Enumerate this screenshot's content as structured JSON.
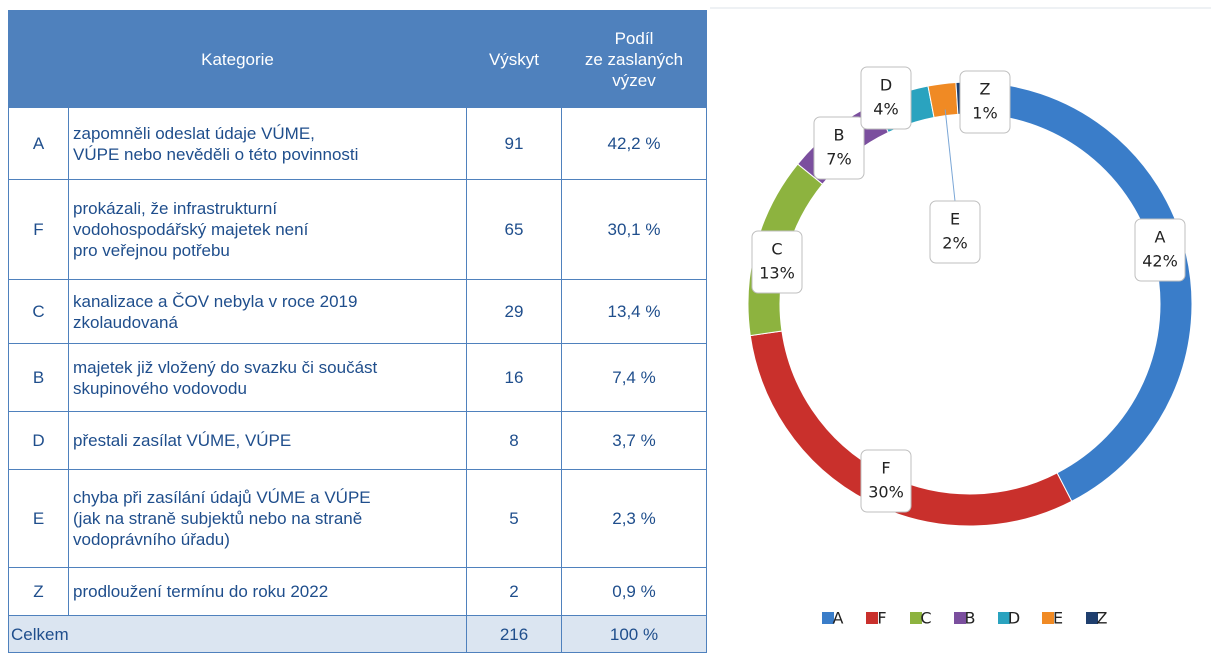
{
  "table": {
    "header": [
      "Kategorie",
      "Výskyt",
      "Podíl\nze zaslaných\nvýzev"
    ],
    "rows": [
      [
        "A",
        "zapomněli odeslat údaje VÚME,\nVÚPE nebo nevěděli o této povinnosti",
        91,
        "42,2 %"
      ],
      [
        "F",
        "prokázali, že infrastrukturní\nvodohospodářský majetek není\npro veřejnou potřebu",
        65,
        "30,1 %"
      ],
      [
        "C",
        "kanalizace a ČOV nebyla v roce 2019\nzkolaudovaná",
        29,
        "13,4 %"
      ],
      [
        "B",
        "majetek již vložený do svazku či součást\nskupinového vodovodu",
        16,
        "7,4 %"
      ],
      [
        "D",
        "přestali zasílat VÚME, VÚPE",
        8,
        "3,7 %"
      ],
      [
        "E",
        "chyba při zasílání údajů VÚME a VÚPE\n(jak na straně subjektů nebo na straně\nvodoprávního úřadu)",
        5,
        "2,3 %"
      ],
      [
        "Z",
        "prodloužení termínu do roku 2022",
        2,
        "0,9 %"
      ]
    ],
    "total": [
      "Celkem",
      216,
      "100 %"
    ]
  },
  "chart_data": {
    "type": "donut",
    "categories": [
      "A",
      "F",
      "C",
      "B",
      "D",
      "E",
      "Z"
    ],
    "values": [
      42,
      30,
      13,
      7,
      4,
      2,
      1
    ],
    "value_labels": [
      "42%",
      "30%",
      "13%",
      "7%",
      "4%",
      "2%",
      "1%"
    ],
    "colors": [
      "#3a7dc9",
      "#c9302c",
      "#8db33f",
      "#7b4f9e",
      "#2aa3bf",
      "#f08a24",
      "#1f3f6e"
    ],
    "legend": "bottom"
  }
}
